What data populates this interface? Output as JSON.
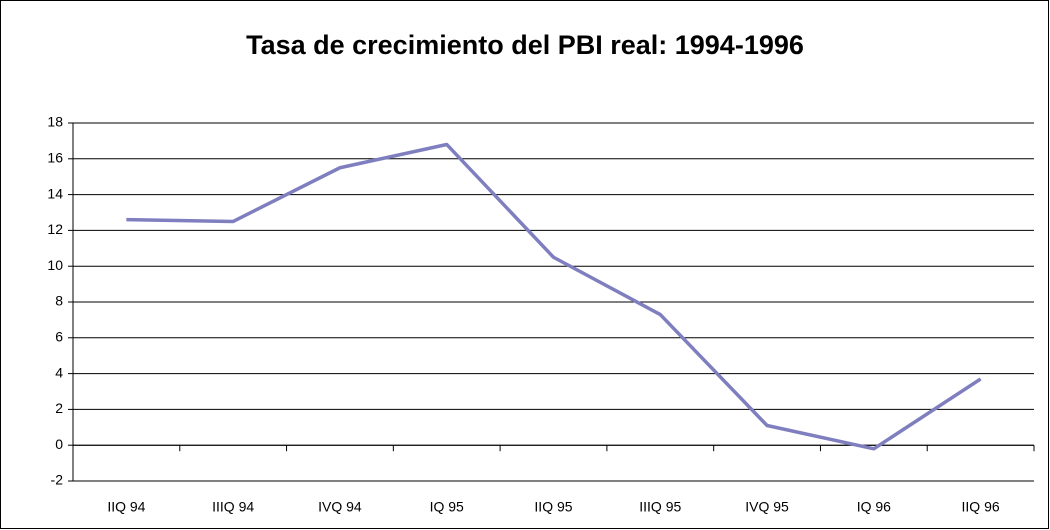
{
  "chart_data": {
    "type": "line",
    "title": "Tasa de crecimiento del PBI real: 1994-1996",
    "categories": [
      "IIQ 94",
      "IIIQ 94",
      "IVQ 94",
      "IQ 95",
      "IIQ 95",
      "IIIQ 95",
      "IVQ 95",
      "IQ 96",
      "IIQ 96"
    ],
    "values": [
      12.6,
      12.5,
      15.5,
      16.8,
      10.5,
      7.3,
      1.1,
      -0.2,
      3.7
    ],
    "color": "#7f7fc0",
    "ylim": [
      -2,
      18
    ],
    "yticks": [
      -2,
      0,
      2,
      4,
      6,
      8,
      10,
      12,
      14,
      16,
      18
    ],
    "grid": true
  }
}
